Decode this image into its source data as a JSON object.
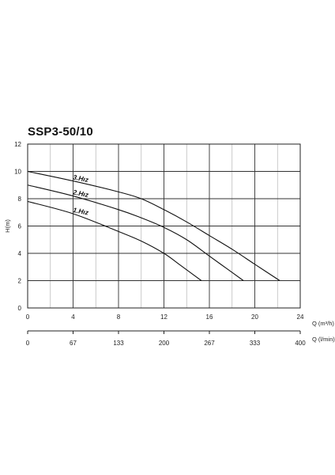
{
  "chart_data": {
    "type": "line",
    "title": "SSP3-50/10",
    "ylabel": "H(m)",
    "xlabel": "Q (m³/h)",
    "x2label": "Q (l/min)",
    "xlim": [
      0,
      24
    ],
    "ylim": [
      0,
      12
    ],
    "x_ticks": [
      "0",
      "4",
      "8",
      "12",
      "16",
      "20",
      "24"
    ],
    "x2_ticks": [
      "0",
      "67",
      "133",
      "200",
      "267",
      "333",
      "400"
    ],
    "y_ticks": [
      "0",
      "2",
      "4",
      "6",
      "8",
      "10",
      "12"
    ],
    "grid": true,
    "series": [
      {
        "name": "3.Hız",
        "x": [
          0,
          4,
          8,
          10,
          12,
          14,
          16,
          18,
          20,
          22.2
        ],
        "y": [
          10.0,
          9.3,
          8.5,
          8.0,
          7.2,
          6.3,
          5.3,
          4.3,
          3.2,
          2.0
        ]
      },
      {
        "name": "2.Hız",
        "x": [
          0,
          4,
          8,
          10,
          12,
          14,
          16,
          17.5,
          19
        ],
        "y": [
          9.0,
          8.2,
          7.2,
          6.6,
          5.9,
          5.0,
          3.8,
          2.9,
          2.0
        ]
      },
      {
        "name": "1.Hız",
        "x": [
          0,
          4,
          8,
          10,
          12,
          13.5,
          15.3
        ],
        "y": [
          7.8,
          6.9,
          5.6,
          4.9,
          4.0,
          3.1,
          2.0
        ]
      }
    ]
  }
}
